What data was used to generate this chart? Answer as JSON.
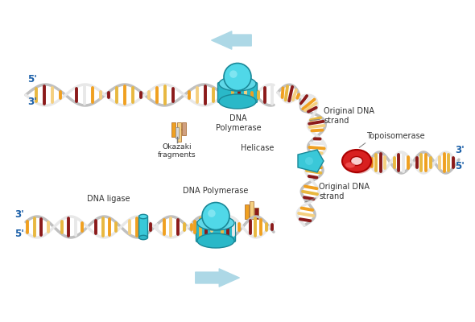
{
  "bg_color": "#ffffff",
  "blue_color": "#3bb8c8",
  "light_blue_arrow": "#add8e6",
  "label_color": "#1a5fa8",
  "red_color": "#d82020",
  "dark_red": "#8b1a1a",
  "orange": "#f0a020",
  "gold": "#e8b840",
  "light_gold": "#f5d080",
  "gray_strand": "#c0c0c0",
  "dark_gray": "#888888",
  "white_strand": "#e8e8e8",
  "text_color": "#333333",
  "teal_body": "#2ab8c8",
  "teal_top": "#50d8e8",
  "teal_ligase": "#40c8d8",
  "annotations": {
    "five_prime_top": "5'",
    "three_prime_top": "3'",
    "five_prime_right": "5'",
    "three_prime_right": "3'",
    "three_prime_bottom": "3'",
    "five_prime_bottom": "5'",
    "okazaki": "Okazaki\nfragments",
    "dna_poly_top": "DNA\nPolymerase",
    "original_dna_top": "Original DNA\nstrand",
    "topoisomerase": "Topoisomerase",
    "helicase": "Helicase",
    "dna_ligase": "DNA ligase",
    "dna_poly_bottom": "DNA Polymerase",
    "original_dna_bottom": "Original DNA\nstrand"
  }
}
